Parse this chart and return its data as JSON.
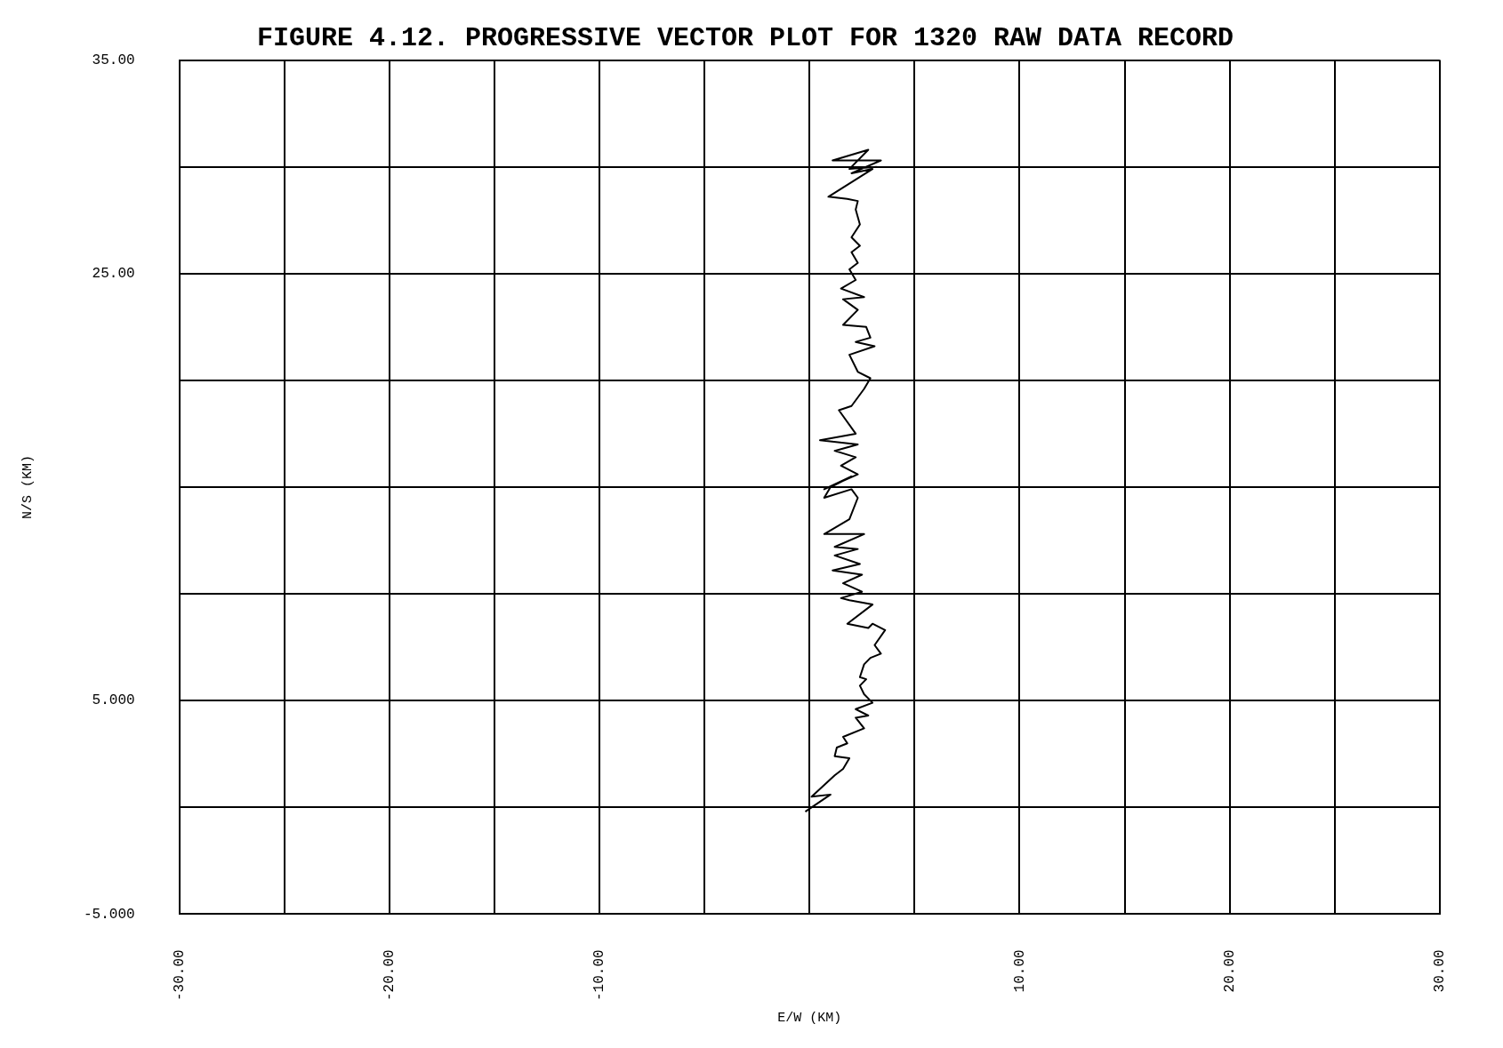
{
  "chart_data": {
    "type": "line",
    "title": "FIGURE 4.12. PROGRESSIVE VECTOR PLOT FOR 1320 RAW DATA RECORD",
    "xlabel": "E/W (KM)",
    "ylabel": "N/S (KM)",
    "xlim": [
      -30,
      30
    ],
    "ylim": [
      -5,
      35
    ],
    "xticks": [
      {
        "value": -30,
        "label": "-30.00"
      },
      {
        "value": -25,
        "label": null
      },
      {
        "value": -20,
        "label": "-20.00"
      },
      {
        "value": -15,
        "label": null
      },
      {
        "value": -10,
        "label": "-10.00"
      },
      {
        "value": -5,
        "label": null
      },
      {
        "value": 0,
        "label": null
      },
      {
        "value": 5,
        "label": null
      },
      {
        "value": 10,
        "label": "10.00"
      },
      {
        "value": 15,
        "label": null
      },
      {
        "value": 20,
        "label": "20.00"
      },
      {
        "value": 25,
        "label": null
      },
      {
        "value": 30,
        "label": "30.00"
      }
    ],
    "yticks": [
      {
        "value": -5,
        "label": "-5.000"
      },
      {
        "value": 0,
        "label": null
      },
      {
        "value": 5,
        "label": "5.000"
      },
      {
        "value": 10,
        "label": null
      },
      {
        "value": 15,
        "label": null
      },
      {
        "value": 20,
        "label": null
      },
      {
        "value": 25,
        "label": "25.00"
      },
      {
        "value": 30,
        "label": null
      },
      {
        "value": 35,
        "label": "35.00"
      }
    ],
    "grid": true,
    "legend": false,
    "marker": "none",
    "line_style": "solid",
    "series": [
      {
        "color": "#000000",
        "x": [
          -0.2,
          1.0,
          0.1,
          1.2,
          1.6,
          1.9,
          1.2,
          1.3,
          1.8,
          1.6,
          2.6,
          2.2,
          2.8,
          2.2,
          3.0,
          2.6,
          2.4,
          2.7,
          2.4,
          2.6,
          2.9,
          3.4,
          3.1,
          3.6,
          3.0,
          2.8,
          1.8,
          3.0,
          1.9,
          1.5,
          2.5,
          1.6,
          2.5,
          1.1,
          2.4,
          1.2,
          2.3,
          1.2,
          2.6,
          0.7,
          1.9,
          2.3,
          2.0,
          0.7,
          1.0,
          2.0,
          0.7,
          2.3,
          1.5,
          2.2,
          1.2,
          2.3,
          0.5,
          2.2,
          1.4,
          2.0,
          2.6,
          2.9,
          2.3,
          1.9,
          3.1,
          2.2,
          2.9,
          2.7,
          1.6,
          2.3,
          1.6,
          2.6,
          1.5,
          2.2,
          1.9,
          2.3,
          2.0,
          2.4,
          2.0,
          2.4,
          2.2,
          2.3,
          1.8,
          0.9,
          3.0,
          2.0,
          3.4,
          1.1,
          2.8,
          1.9,
          3.2
        ],
        "values": [
          -0.2,
          0.6,
          0.5,
          1.5,
          1.8,
          2.3,
          2.4,
          2.8,
          3.0,
          3.3,
          3.7,
          4.2,
          4.3,
          4.6,
          4.9,
          5.3,
          5.7,
          6.0,
          6.1,
          6.7,
          7.0,
          7.2,
          7.6,
          8.3,
          8.6,
          8.4,
          8.6,
          9.5,
          9.7,
          9.8,
          10.1,
          10.5,
          10.9,
          11.1,
          11.4,
          11.8,
          12.1,
          12.2,
          12.8,
          12.8,
          13.5,
          14.5,
          14.9,
          14.5,
          15.0,
          15.5,
          14.9,
          15.6,
          16.0,
          16.4,
          16.7,
          17.0,
          17.2,
          17.5,
          18.6,
          18.8,
          19.6,
          20.1,
          20.4,
          21.2,
          21.6,
          21.8,
          22.0,
          22.5,
          22.6,
          23.3,
          23.8,
          23.9,
          24.3,
          24.7,
          25.2,
          25.5,
          26.0,
          26.3,
          26.7,
          27.3,
          28.0,
          28.4,
          28.5,
          28.6,
          29.9,
          29.7,
          30.3,
          30.3,
          30.8,
          29.9,
          30.0
        ]
      }
    ]
  }
}
